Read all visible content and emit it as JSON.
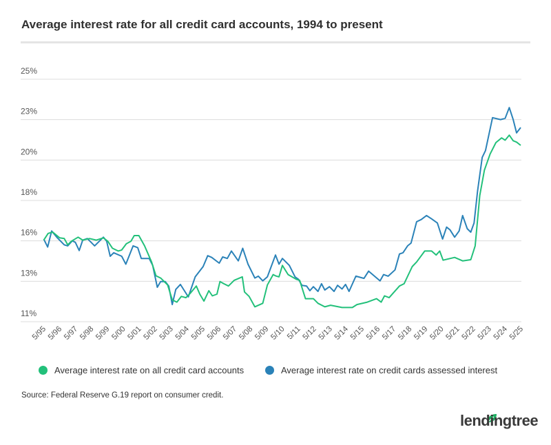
{
  "chart_data": {
    "type": "line",
    "title": "Average interest rate for all credit card accounts, 1994 to present",
    "xlabel": "",
    "ylabel": "",
    "xlim": [
      1995.33,
      2025.33
    ],
    "ylim": [
      11,
      25
    ],
    "grid": true,
    "legend_position": "bottom",
    "y_ticks": [
      11,
      13.33,
      15.67,
      18,
      20.33,
      22.67,
      25
    ],
    "y_tick_labels": [
      "11%",
      "13%",
      "16%",
      "18%",
      "20%",
      "23%",
      "25%"
    ],
    "x_tick_labels": [
      "5/95",
      "5/96",
      "5/97",
      "5/98",
      "5/99",
      "5/00",
      "5/01",
      "5/02",
      "5/03",
      "5/04",
      "5/05",
      "5/06",
      "5/07",
      "5/08",
      "5/09",
      "5/10",
      "5/11",
      "5/12",
      "5/13",
      "5/14",
      "5/15",
      "5/16",
      "5/17",
      "5/18",
      "5/19",
      "5/20",
      "5/21",
      "5/22",
      "5/23",
      "5/24",
      "5/25"
    ],
    "series": [
      {
        "name": "Average interest rate on all credit card accounts",
        "color": "#22c07a",
        "points": [
          [
            1995.35,
            15.71
          ],
          [
            1995.63,
            16.1
          ],
          [
            1995.92,
            16.17
          ],
          [
            1996.35,
            15.84
          ],
          [
            1996.64,
            15.8
          ],
          [
            1996.86,
            15.44
          ],
          [
            1997.08,
            15.64
          ],
          [
            1997.51,
            15.88
          ],
          [
            1997.8,
            15.71
          ],
          [
            1998.23,
            15.8
          ],
          [
            1998.66,
            15.71
          ],
          [
            1999.1,
            15.84
          ],
          [
            1999.38,
            15.64
          ],
          [
            1999.67,
            15.24
          ],
          [
            2000.03,
            15.08
          ],
          [
            2000.25,
            15.14
          ],
          [
            2000.54,
            15.5
          ],
          [
            2000.83,
            15.64
          ],
          [
            2001.04,
            15.97
          ],
          [
            2001.33,
            15.97
          ],
          [
            2001.69,
            15.38
          ],
          [
            2002.13,
            14.45
          ],
          [
            2002.41,
            13.65
          ],
          [
            2002.7,
            13.52
          ],
          [
            2003.14,
            13.12
          ],
          [
            2003.43,
            12.26
          ],
          [
            2003.72,
            12.13
          ],
          [
            2004.0,
            12.46
          ],
          [
            2004.29,
            12.39
          ],
          [
            2004.58,
            12.66
          ],
          [
            2004.94,
            13.06
          ],
          [
            2005.16,
            12.59
          ],
          [
            2005.42,
            12.19
          ],
          [
            2005.73,
            12.79
          ],
          [
            2005.95,
            12.49
          ],
          [
            2006.24,
            12.59
          ],
          [
            2006.43,
            13.32
          ],
          [
            2006.67,
            13.19
          ],
          [
            2006.96,
            13.06
          ],
          [
            2007.32,
            13.39
          ],
          [
            2007.83,
            13.59
          ],
          [
            2007.97,
            12.72
          ],
          [
            2008.26,
            12.46
          ],
          [
            2008.62,
            11.86
          ],
          [
            2009.12,
            12.06
          ],
          [
            2009.41,
            13.12
          ],
          [
            2009.77,
            13.72
          ],
          [
            2009.92,
            13.65
          ],
          [
            2010.14,
            13.59
          ],
          [
            2010.35,
            14.25
          ],
          [
            2010.71,
            13.72
          ],
          [
            2011.22,
            13.45
          ],
          [
            2011.44,
            13.39
          ],
          [
            2011.8,
            12.33
          ],
          [
            2012.3,
            12.33
          ],
          [
            2012.59,
            12.06
          ],
          [
            2013.02,
            11.86
          ],
          [
            2013.38,
            11.95
          ],
          [
            2014.1,
            11.82
          ],
          [
            2014.75,
            11.82
          ],
          [
            2015.04,
            11.99
          ],
          [
            2015.69,
            12.13
          ],
          [
            2016.27,
            12.33
          ],
          [
            2016.56,
            12.13
          ],
          [
            2016.77,
            12.49
          ],
          [
            2017.06,
            12.39
          ],
          [
            2017.71,
            13.06
          ],
          [
            2018.0,
            13.19
          ],
          [
            2018.51,
            14.18
          ],
          [
            2018.79,
            14.45
          ],
          [
            2019.3,
            15.08
          ],
          [
            2019.73,
            15.08
          ],
          [
            2020.02,
            14.85
          ],
          [
            2020.24,
            15.08
          ],
          [
            2020.45,
            14.55
          ],
          [
            2021.18,
            14.71
          ],
          [
            2021.68,
            14.51
          ],
          [
            2022.19,
            14.58
          ],
          [
            2022.47,
            15.38
          ],
          [
            2022.76,
            18.29
          ],
          [
            2023.05,
            19.75
          ],
          [
            2023.41,
            20.68
          ],
          [
            2023.77,
            21.34
          ],
          [
            2024.13,
            21.61
          ],
          [
            2024.35,
            21.48
          ],
          [
            2024.61,
            21.77
          ],
          [
            2024.86,
            21.45
          ],
          [
            2025.07,
            21.37
          ],
          [
            2025.33,
            21.18
          ]
        ]
      },
      {
        "name": "Average interest rate on credit cards assessed interest",
        "color": "#2a82b8",
        "points": [
          [
            1995.35,
            15.77
          ],
          [
            1995.6,
            15.31
          ],
          [
            1995.85,
            16.24
          ],
          [
            1996.21,
            15.84
          ],
          [
            1996.64,
            15.44
          ],
          [
            1996.86,
            15.38
          ],
          [
            1997.15,
            15.67
          ],
          [
            1997.34,
            15.58
          ],
          [
            1997.58,
            15.11
          ],
          [
            1997.8,
            15.71
          ],
          [
            1998.09,
            15.8
          ],
          [
            1998.55,
            15.38
          ],
          [
            1999.1,
            15.88
          ],
          [
            1999.31,
            15.64
          ],
          [
            1999.53,
            14.78
          ],
          [
            1999.75,
            14.98
          ],
          [
            2000.25,
            14.78
          ],
          [
            2000.51,
            14.32
          ],
          [
            2000.97,
            15.38
          ],
          [
            2001.26,
            15.27
          ],
          [
            2001.48,
            14.65
          ],
          [
            2001.98,
            14.65
          ],
          [
            2002.2,
            14.25
          ],
          [
            2002.49,
            12.99
          ],
          [
            2002.7,
            13.32
          ],
          [
            2002.99,
            13.32
          ],
          [
            2003.21,
            13.06
          ],
          [
            2003.43,
            11.99
          ],
          [
            2003.65,
            12.86
          ],
          [
            2003.94,
            13.15
          ],
          [
            2004.44,
            12.43
          ],
          [
            2004.87,
            13.59
          ],
          [
            2005.37,
            14.18
          ],
          [
            2005.66,
            14.81
          ],
          [
            2005.91,
            14.71
          ],
          [
            2006.38,
            14.38
          ],
          [
            2006.6,
            14.74
          ],
          [
            2006.89,
            14.65
          ],
          [
            2007.15,
            15.08
          ],
          [
            2007.58,
            14.51
          ],
          [
            2007.86,
            15.24
          ],
          [
            2008.19,
            14.32
          ],
          [
            2008.62,
            13.52
          ],
          [
            2008.84,
            13.63
          ],
          [
            2009.12,
            13.36
          ],
          [
            2009.41,
            13.59
          ],
          [
            2009.92,
            14.85
          ],
          [
            2010.14,
            14.32
          ],
          [
            2010.35,
            14.65
          ],
          [
            2010.79,
            14.25
          ],
          [
            2011.15,
            13.59
          ],
          [
            2011.36,
            13.45
          ],
          [
            2011.58,
            13.1
          ],
          [
            2011.87,
            13.06
          ],
          [
            2012.08,
            12.79
          ],
          [
            2012.3,
            13.02
          ],
          [
            2012.59,
            12.75
          ],
          [
            2012.81,
            13.19
          ],
          [
            2013.02,
            12.83
          ],
          [
            2013.31,
            13.02
          ],
          [
            2013.6,
            12.75
          ],
          [
            2013.82,
            13.1
          ],
          [
            2014.1,
            12.89
          ],
          [
            2014.32,
            13.15
          ],
          [
            2014.54,
            12.75
          ],
          [
            2014.97,
            13.63
          ],
          [
            2015.48,
            13.5
          ],
          [
            2015.77,
            13.92
          ],
          [
            2016.49,
            13.36
          ],
          [
            2016.71,
            13.72
          ],
          [
            2017.0,
            13.63
          ],
          [
            2017.43,
            13.99
          ],
          [
            2017.71,
            14.91
          ],
          [
            2017.93,
            14.98
          ],
          [
            2018.22,
            15.38
          ],
          [
            2018.44,
            15.54
          ],
          [
            2018.79,
            16.77
          ],
          [
            2019.08,
            16.9
          ],
          [
            2019.41,
            17.13
          ],
          [
            2019.73,
            16.94
          ],
          [
            2020.09,
            16.7
          ],
          [
            2020.42,
            15.77
          ],
          [
            2020.67,
            16.46
          ],
          [
            2020.89,
            16.3
          ],
          [
            2021.18,
            15.88
          ],
          [
            2021.46,
            16.24
          ],
          [
            2021.68,
            17.13
          ],
          [
            2021.97,
            16.37
          ],
          [
            2022.19,
            16.17
          ],
          [
            2022.4,
            16.7
          ],
          [
            2022.62,
            18.55
          ],
          [
            2022.91,
            20.48
          ],
          [
            2023.12,
            20.88
          ],
          [
            2023.56,
            22.78
          ],
          [
            2024.06,
            22.67
          ],
          [
            2024.35,
            22.74
          ],
          [
            2024.61,
            23.36
          ],
          [
            2024.86,
            22.67
          ],
          [
            2025.07,
            21.9
          ],
          [
            2025.33,
            22.21
          ]
        ]
      }
    ],
    "source": "Source: Federal Reserve G.19 report on consumer credit."
  },
  "brand": {
    "logo_text": "lendingtree"
  }
}
